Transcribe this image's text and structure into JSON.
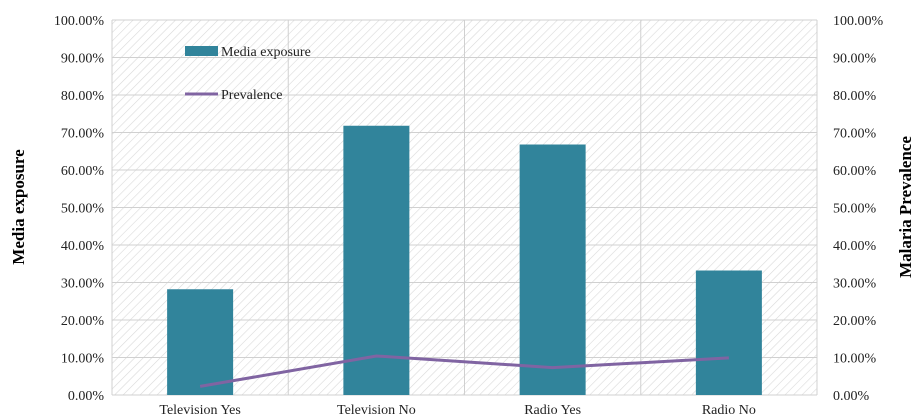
{
  "chart_data": {
    "type": "bar",
    "categories": [
      "Television Yes",
      "Television No",
      "Radio Yes",
      "Radio No"
    ],
    "series": [
      {
        "name": "Media exposure",
        "kind": "bar",
        "axis": "left",
        "values": [
          28.2,
          71.8,
          66.8,
          33.2
        ],
        "color": "#31849b"
      },
      {
        "name": "Prevalence",
        "kind": "line",
        "axis": "right",
        "values": [
          2.3,
          10.4,
          7.3,
          9.9
        ],
        "color": "#8064a2"
      }
    ],
    "ylabel": "Media exposure",
    "y2label": "Malaria Prevalence",
    "ylim": [
      0,
      100
    ],
    "y2lim": [
      0,
      100
    ],
    "yticks": [
      "0.00%",
      "10.00%",
      "20.00%",
      "30.00%",
      "40.00%",
      "50.00%",
      "60.00%",
      "70.00%",
      "80.00%",
      "90.00%",
      "100.00%"
    ],
    "y2ticks": [
      "0.00%",
      "10.00%",
      "20.00%",
      "30.00%",
      "40.00%",
      "50.00%",
      "60.00%",
      "70.00%",
      "80.00%",
      "90.00%",
      "100.00%"
    ],
    "grid": true,
    "legend_position": "top-left"
  }
}
